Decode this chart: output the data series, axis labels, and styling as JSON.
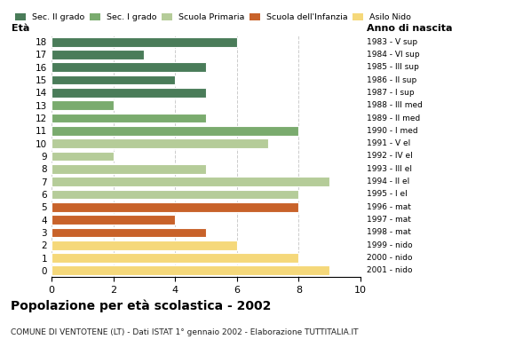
{
  "ages": [
    18,
    17,
    16,
    15,
    14,
    13,
    12,
    11,
    10,
    9,
    8,
    7,
    6,
    5,
    4,
    3,
    2,
    1,
    0
  ],
  "values": [
    6,
    3,
    5,
    4,
    5,
    2,
    5,
    8,
    7,
    2,
    5,
    9,
    8,
    8,
    4,
    5,
    6,
    8,
    9
  ],
  "right_labels": [
    "1983 - V sup",
    "1984 - VI sup",
    "1985 - III sup",
    "1986 - II sup",
    "1987 - I sup",
    "1988 - III med",
    "1989 - II med",
    "1990 - I med",
    "1991 - V el",
    "1992 - IV el",
    "1993 - III el",
    "1994 - II el",
    "1995 - I el",
    "1996 - mat",
    "1997 - mat",
    "1998 - mat",
    "1999 - nido",
    "2000 - nido",
    "2001 - nido"
  ],
  "bar_colors": [
    "#4a7c59",
    "#4a7c59",
    "#4a7c59",
    "#4a7c59",
    "#4a7c59",
    "#7aab6e",
    "#7aab6e",
    "#7aab6e",
    "#b5cc99",
    "#b5cc99",
    "#b5cc99",
    "#b5cc99",
    "#b5cc99",
    "#c8622a",
    "#c8622a",
    "#c8622a",
    "#f5d87a",
    "#f5d87a",
    "#f5d87a"
  ],
  "legend_labels": [
    "Sec. II grado",
    "Sec. I grado",
    "Scuola Primaria",
    "Scuola dell'Infanzia",
    "Asilo Nido"
  ],
  "legend_colors": [
    "#4a7c59",
    "#7aab6e",
    "#b5cc99",
    "#c8622a",
    "#f5d87a"
  ],
  "title": "Popolazione per età scolastica - 2002",
  "subtitle": "COMUNE DI VENTOTENE (LT) - Dati ISTAT 1° gennaio 2002 - Elaborazione TUTTITALIA.IT",
  "xlabel_left": "Età",
  "xlabel_right": "Anno di nascita",
  "xlim": [
    0,
    10
  ],
  "xticks": [
    0,
    2,
    4,
    6,
    8,
    10
  ],
  "background_color": "#ffffff",
  "grid_color": "#cccccc"
}
